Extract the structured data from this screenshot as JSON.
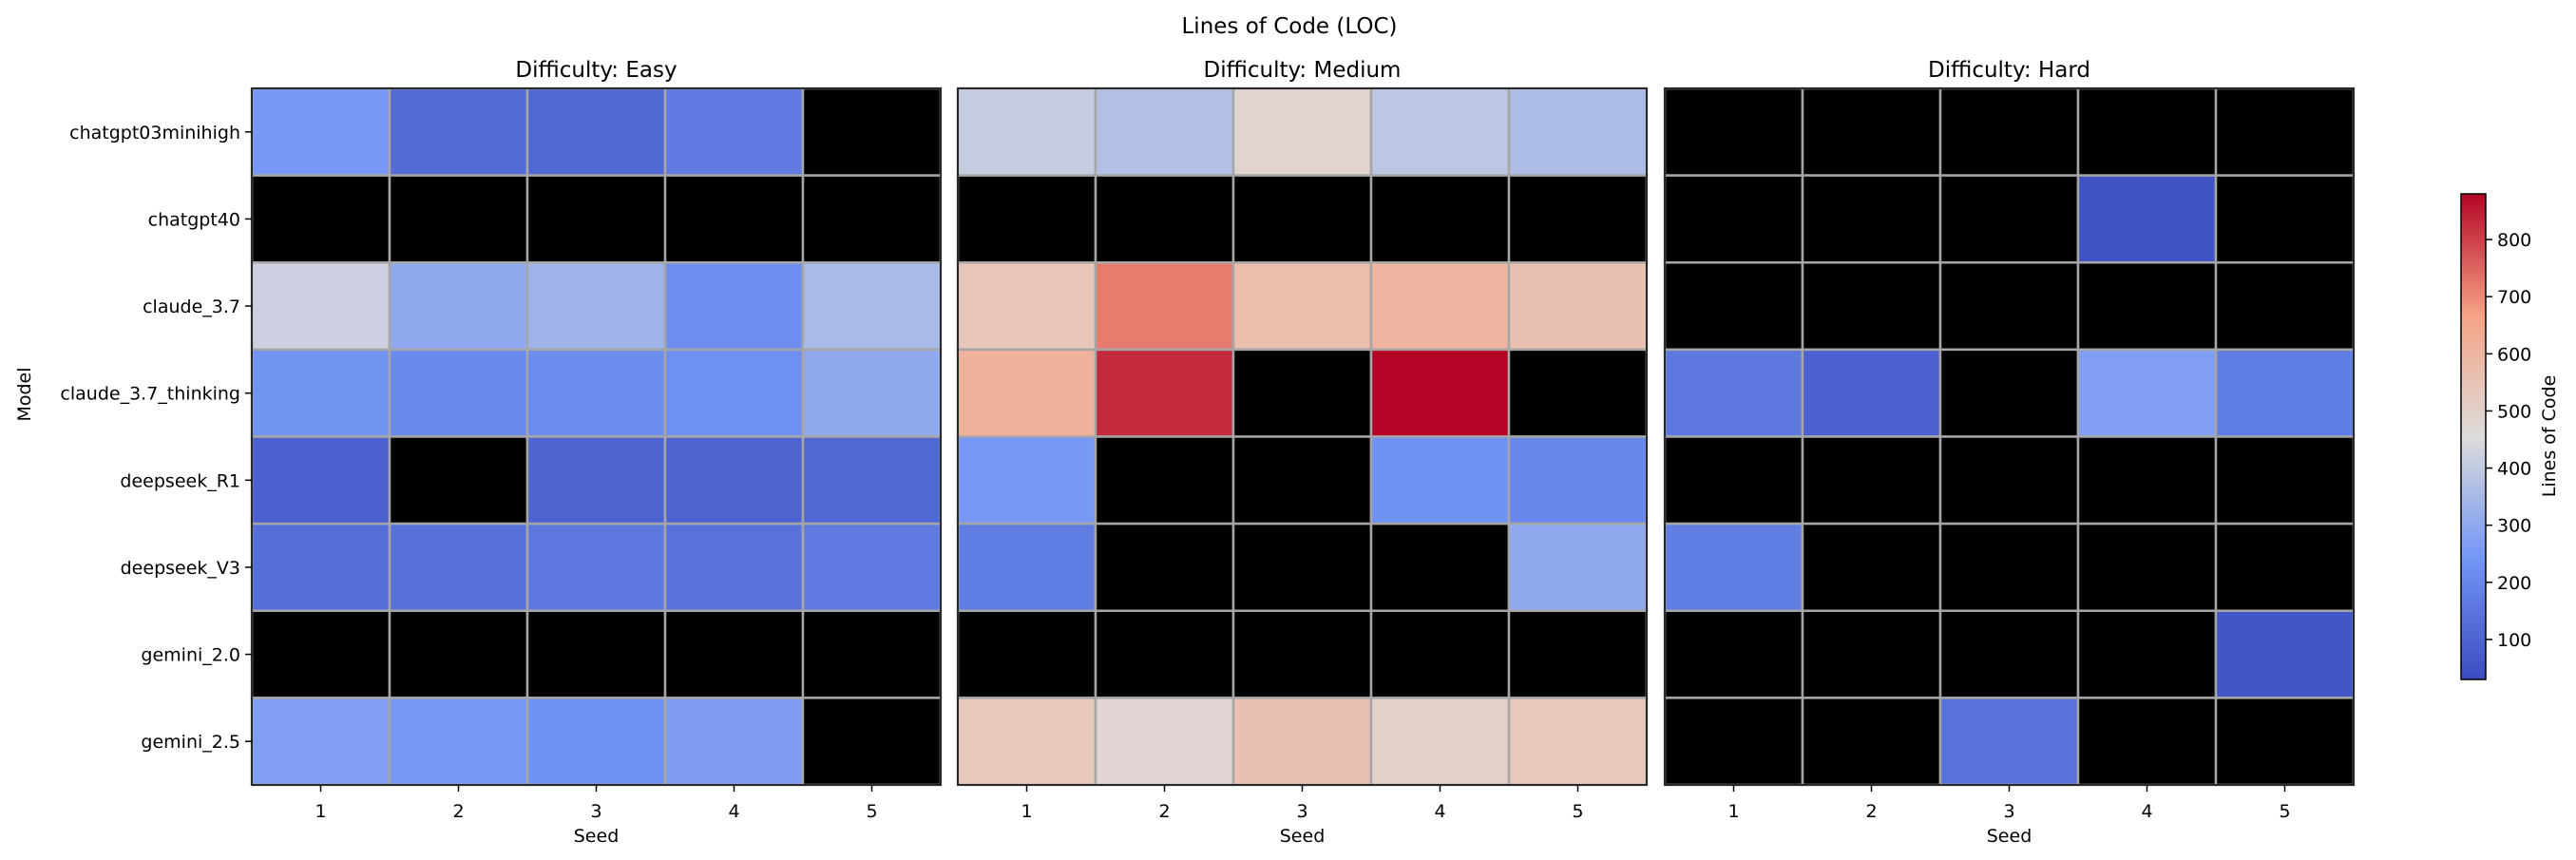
{
  "chart_data": {
    "type": "heatmap",
    "title": "Lines of Code (LOC)",
    "ylabel": "Model",
    "xlabel": "Seed",
    "rows": [
      "chatgpt03minihigh",
      "chatgpt40",
      "claude_3.7",
      "claude_3.7_thinking",
      "deepseek_R1",
      "deepseek_V3",
      "gemini_2.0",
      "gemini_2.5"
    ],
    "columns": [
      "1",
      "2",
      "3",
      "4",
      "5"
    ],
    "missing_color": "#000000",
    "colormap": "coolwarm",
    "colorbar": {
      "label": "Lines of Code",
      "range": [
        30,
        880
      ],
      "ticks": [
        100,
        200,
        300,
        400,
        500,
        600,
        700,
        800
      ]
    },
    "panels": [
      {
        "title": "Difficulty: Easy",
        "values": [
          [
            250,
            120,
            110,
            165,
            null
          ],
          [
            null,
            null,
            null,
            null,
            null
          ],
          [
            420,
            300,
            330,
            220,
            350
          ],
          [
            240,
            210,
            215,
            225,
            300
          ],
          [
            90,
            null,
            100,
            95,
            110
          ],
          [
            130,
            135,
            160,
            140,
            165
          ],
          [
            null,
            null,
            null,
            null,
            null
          ],
          [
            270,
            250,
            230,
            265,
            null
          ]
        ]
      },
      {
        "title": "Difficulty: Medium",
        "values": [
          [
            410,
            370,
            490,
            390,
            360
          ],
          [
            null,
            null,
            null,
            null,
            null
          ],
          [
            540,
            720,
            570,
            600,
            560
          ],
          [
            610,
            830,
            null,
            880,
            null
          ],
          [
            250,
            null,
            null,
            230,
            200
          ],
          [
            170,
            null,
            null,
            null,
            300
          ],
          [
            null,
            null,
            null,
            null,
            null
          ],
          [
            530,
            480,
            560,
            500,
            530
          ]
        ]
      },
      {
        "title": "Difficulty: Hard",
        "values": [
          [
            null,
            null,
            null,
            null,
            null
          ],
          [
            null,
            null,
            null,
            50,
            null
          ],
          [
            null,
            null,
            null,
            null,
            null
          ],
          [
            160,
            90,
            null,
            270,
            170
          ],
          [
            null,
            null,
            null,
            null,
            null
          ],
          [
            175,
            null,
            null,
            null,
            null
          ],
          [
            null,
            null,
            null,
            null,
            60
          ],
          [
            null,
            null,
            140,
            null,
            null
          ]
        ]
      }
    ]
  }
}
